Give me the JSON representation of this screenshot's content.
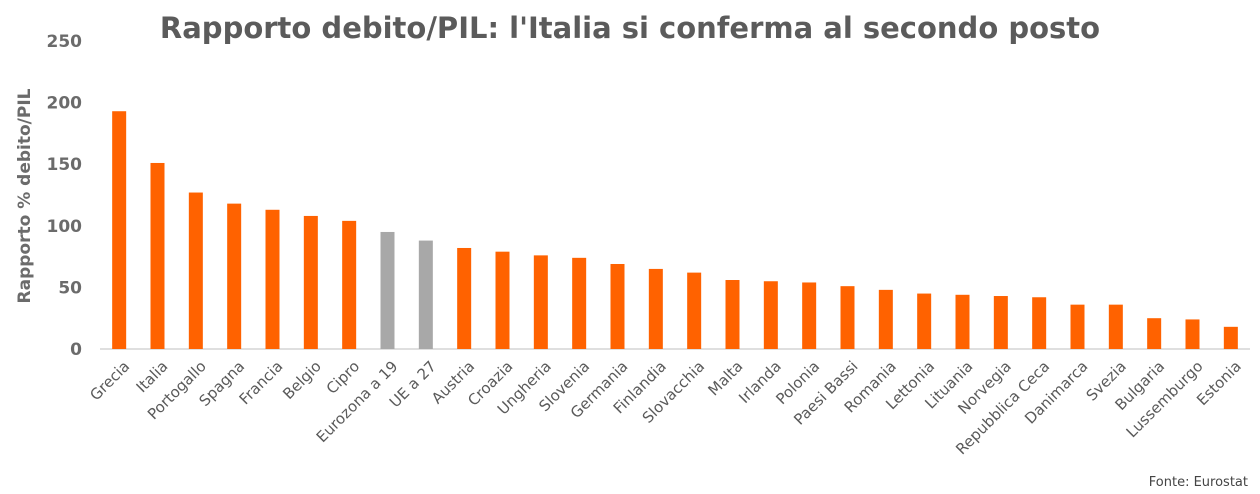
{
  "chart_data": {
    "type": "bar",
    "title": "Rapporto debito/PIL: l'Italia si conferma al secondo posto",
    "ylabel": "Rapporto % debito/PIL",
    "xlabel": "",
    "ylim": [
      0,
      250
    ],
    "yticks": [
      0,
      50,
      100,
      150,
      200,
      250
    ],
    "grid": false,
    "legend": "none",
    "source": "Fonte: Eurostat",
    "categories": [
      "Grecia",
      "Italia",
      "Portogallo",
      "Spagna",
      "Francia",
      "Belgio",
      "Cipro",
      "Eurozona a 19",
      "UE a 27",
      "Austria",
      "Croazia",
      "Ungheria",
      "Slovenia",
      "Germania",
      "Finlandia",
      "Slovacchia",
      "Malta",
      "Irlanda",
      "Polonia",
      "Paesi Bassi",
      "Romania",
      "Lettonia",
      "Lituania",
      "Norvegia",
      "Repubblica Ceca",
      "Danimarca",
      "Svezia",
      "Bulgaria",
      "Lussemburgo",
      "Estonia"
    ],
    "values": [
      193,
      151,
      127,
      118,
      113,
      108,
      104,
      95,
      88,
      82,
      79,
      76,
      74,
      69,
      65,
      62,
      56,
      55,
      54,
      51,
      48,
      45,
      44,
      43,
      42,
      36,
      36,
      25,
      24,
      18
    ],
    "highlighted_categories": [
      "Eurozona a 19",
      "UE a 27"
    ],
    "colors": {
      "bar": "#ff6200",
      "bar_highlight": "#a8a8a8",
      "axis": "#bfbfbf"
    }
  }
}
